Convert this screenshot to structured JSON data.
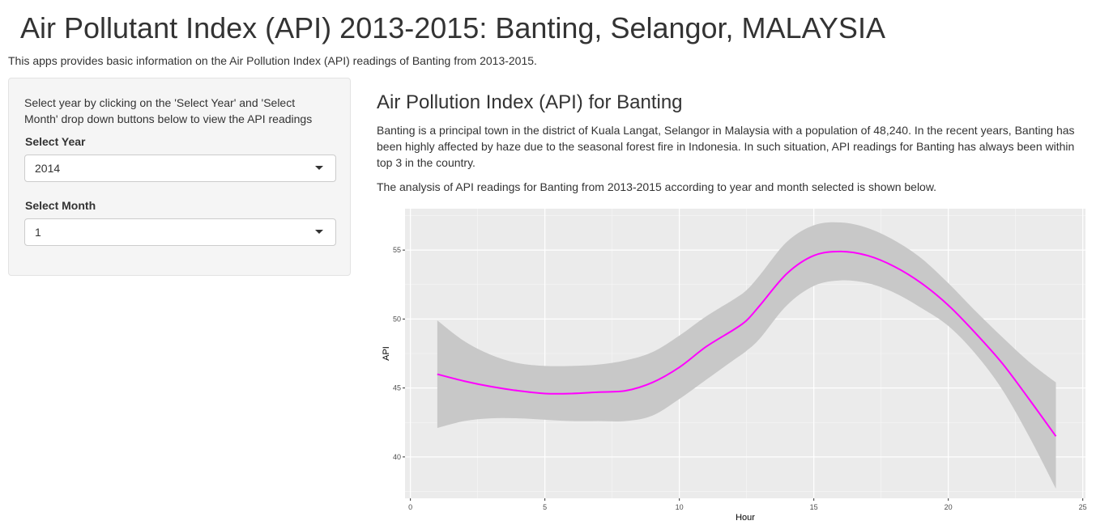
{
  "page": {
    "title": "Air Pollutant Index (API) 2013-2015: Banting, Selangor, MALAYSIA",
    "intro": "This apps provides basic information on the Air Pollution Index (API) readings of Banting from 2013-2015."
  },
  "sidebar": {
    "help_text": "Select year by clicking on the 'Select Year' and 'Select Month' drop down buttons below to view the API readings",
    "year_label": "Select Year",
    "year_value": "2014",
    "month_label": "Select Month",
    "month_value": "1"
  },
  "main": {
    "heading": "Air Pollution Index (API) for Banting",
    "description": "Banting is a principal town in the district of Kuala Langat, Selangor in Malaysia with a population of 48,240. In the recent years, Banting has been highly affected by haze due to the seasonal forest fire in Indonesia. In such situation, API readings for Banting has always been within top 3 in the country.",
    "analysis_text": "The analysis of API readings for Banting from 2013-2015 according to year and month selected is shown below."
  },
  "chart_data": {
    "type": "line",
    "title": "",
    "xlabel": "Hour",
    "ylabel": "API",
    "xlim": [
      -0.2,
      25.1
    ],
    "ylim": [
      37.0,
      58.0
    ],
    "x_ticks": [
      0,
      5,
      10,
      15,
      20,
      25
    ],
    "y_ticks": [
      40,
      45,
      50,
      55
    ],
    "grid": true,
    "line_color": "#ff00ff",
    "band_color": "#c8c8c8",
    "panel_color": "#ebebeb",
    "series": [
      {
        "x": [
          1,
          2,
          3,
          4,
          5,
          6,
          7,
          8,
          9,
          10,
          11,
          12,
          12.5,
          13,
          14,
          15,
          16,
          17,
          18,
          19,
          20,
          21,
          22,
          23,
          24
        ],
        "y": [
          46.0,
          45.5,
          45.1,
          44.8,
          44.6,
          44.6,
          44.7,
          44.8,
          45.4,
          46.5,
          48.0,
          49.2,
          49.9,
          51.0,
          53.3,
          54.6,
          54.9,
          54.6,
          53.8,
          52.6,
          51.0,
          49.0,
          46.8,
          44.2,
          41.5
        ],
        "lower": [
          42.1,
          42.6,
          42.8,
          42.8,
          42.7,
          42.6,
          42.6,
          42.6,
          43.0,
          44.2,
          45.6,
          47.0,
          47.7,
          48.6,
          51.0,
          52.4,
          52.8,
          52.6,
          51.9,
          50.8,
          49.5,
          47.5,
          44.9,
          41.5,
          37.7
        ],
        "upper": [
          49.9,
          48.4,
          47.4,
          46.8,
          46.6,
          46.6,
          46.7,
          47.0,
          47.6,
          48.8,
          50.2,
          51.4,
          52.1,
          53.2,
          55.6,
          56.8,
          57.0,
          56.6,
          55.7,
          54.4,
          52.6,
          50.6,
          48.7,
          46.9,
          45.4
        ]
      }
    ]
  }
}
